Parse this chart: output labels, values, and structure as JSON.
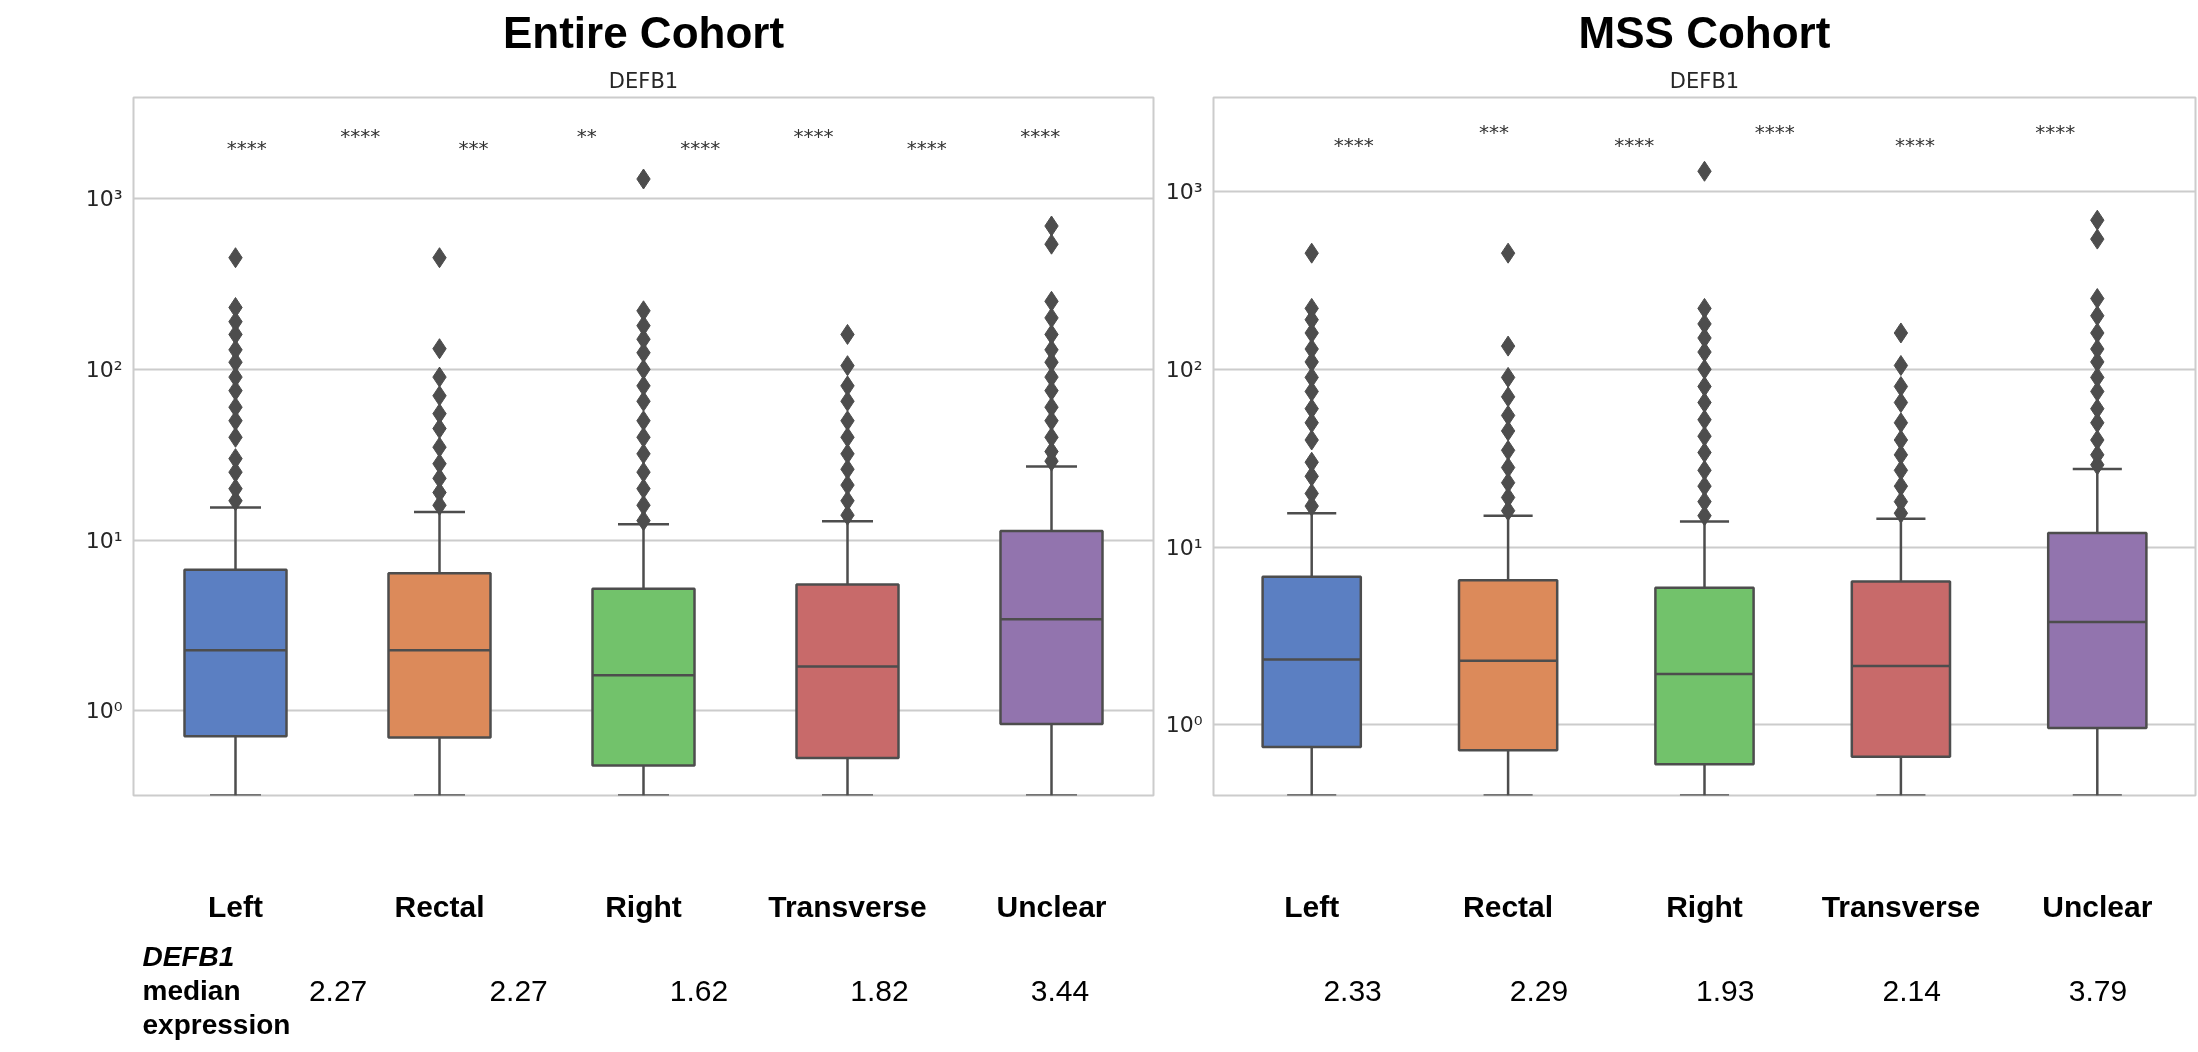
{
  "chart_data": [
    {
      "type": "box",
      "title": "Entire Cohort",
      "subtitle": "DEFB1",
      "categories": [
        "Left",
        "Rectal",
        "Right",
        "Transverse",
        "Unclear"
      ],
      "colors": [
        "#5b7fc2",
        "#dc8a5a",
        "#72c26b",
        "#c86a6a",
        "#9274ae"
      ],
      "boxes": [
        {
          "low": 0.32,
          "q1": 0.71,
          "median": 2.27,
          "q3": 6.7,
          "high": 15.5,
          "outliers": [
            17,
            20,
            25,
            30,
            40,
            50,
            60,
            75,
            90,
            110,
            130,
            160,
            190,
            230,
            450
          ]
        },
        {
          "low": 0.32,
          "q1": 0.7,
          "median": 2.27,
          "q3": 6.4,
          "high": 14.6,
          "outliers": [
            16,
            19,
            23,
            28,
            35,
            45,
            55,
            70,
            90,
            132,
            450
          ]
        },
        {
          "low": 0.32,
          "q1": 0.48,
          "median": 1.62,
          "q3": 5.2,
          "high": 12.4,
          "outliers": [
            13,
            16,
            20,
            25,
            32,
            40,
            50,
            65,
            80,
            100,
            125,
            150,
            180,
            220,
            1300
          ]
        },
        {
          "low": 0.32,
          "q1": 0.53,
          "median": 1.82,
          "q3": 5.5,
          "high": 12.9,
          "outliers": [
            14,
            17,
            21,
            26,
            32,
            40,
            50,
            65,
            80,
            105,
            160
          ]
        },
        {
          "low": 0.32,
          "q1": 0.84,
          "median": 3.44,
          "q3": 11.3,
          "high": 27,
          "outliers": [
            29,
            33,
            40,
            50,
            60,
            75,
            90,
            110,
            130,
            160,
            200,
            250,
            540,
            690
          ]
        }
      ],
      "ylim": [
        0.32,
        3900
      ],
      "yticks": [
        {
          "value": 1,
          "label": "10⁰"
        },
        {
          "value": 10,
          "label": "10¹"
        },
        {
          "value": 100,
          "label": "10²"
        },
        {
          "value": 1000,
          "label": "10³"
        }
      ],
      "log": true,
      "grid": "y",
      "marker": "diamond",
      "value_labels": [
        "2.27",
        "2.27",
        "1.62",
        "1.82",
        "3.44"
      ],
      "annotations": [
        "****",
        "****",
        "***",
        "**",
        "****",
        "****",
        "****",
        "****",
        "DEFB1\nmedian\nexpression"
      ]
    },
    {
      "type": "box",
      "title": "MSS Cohort",
      "subtitle": "DEFB1",
      "categories": [
        "Left",
        "Rectal",
        "Right",
        "Transverse",
        "Unclear"
      ],
      "colors": [
        "#5b7fc2",
        "#dc8a5a",
        "#72c26b",
        "#c86a6a",
        "#9274ae"
      ],
      "boxes": [
        {
          "low": 0.4,
          "q1": 0.75,
          "median": 2.33,
          "q3": 6.8,
          "high": 15.5,
          "outliers": [
            17,
            20,
            25,
            30,
            40,
            50,
            60,
            75,
            90,
            110,
            130,
            160,
            190,
            220,
            450
          ]
        },
        {
          "low": 0.4,
          "q1": 0.72,
          "median": 2.29,
          "q3": 6.5,
          "high": 15,
          "outliers": [
            16,
            19,
            23,
            28,
            35,
            45,
            55,
            70,
            90,
            135,
            450
          ]
        },
        {
          "low": 0.4,
          "q1": 0.6,
          "median": 1.93,
          "q3": 5.9,
          "high": 13.9,
          "outliers": [
            15,
            18,
            22,
            27,
            34,
            42,
            52,
            65,
            80,
            100,
            125,
            150,
            180,
            220,
            1300
          ]
        },
        {
          "low": 0.4,
          "q1": 0.66,
          "median": 2.14,
          "q3": 6.4,
          "high": 14.4,
          "outliers": [
            15.5,
            18,
            22,
            27,
            33,
            40,
            50,
            65,
            80,
            105,
            160
          ]
        },
        {
          "low": 0.4,
          "q1": 0.96,
          "median": 3.79,
          "q3": 12,
          "high": 27.5,
          "outliers": [
            29,
            33,
            40,
            50,
            60,
            75,
            90,
            110,
            130,
            160,
            200,
            250,
            540,
            690
          ]
        }
      ],
      "ylim": [
        0.4,
        3380
      ],
      "yticks": [
        {
          "value": 1,
          "label": "10⁰"
        },
        {
          "value": 10,
          "label": "10¹"
        },
        {
          "value": 100,
          "label": "10²"
        },
        {
          "value": 1000,
          "label": "10³"
        }
      ],
      "log": true,
      "grid": "y",
      "marker": "diamond",
      "value_labels": [
        "2.33",
        "2.29",
        "1.93",
        "2.14",
        "3.79"
      ],
      "annotations": [
        "****",
        "***",
        "****",
        "****",
        "****",
        "****"
      ]
    }
  ]
}
